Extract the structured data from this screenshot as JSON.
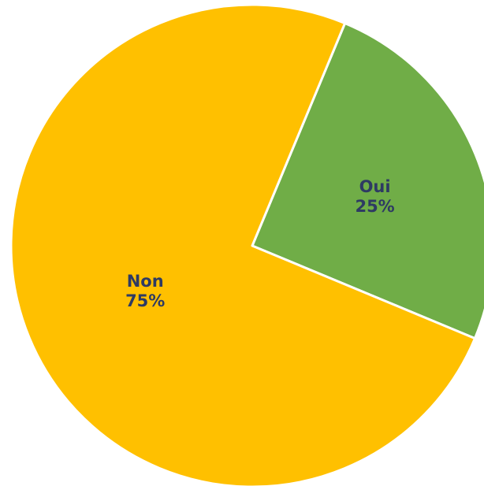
{
  "chart_data": {
    "type": "pie",
    "title": "",
    "categories": [
      "Oui",
      "Non"
    ],
    "values": [
      25,
      75
    ],
    "value_labels": [
      "25%",
      "75%"
    ],
    "colors": [
      "#70AD47",
      "#FFC000"
    ],
    "label_color": "#2E3A63",
    "separator_color": "#FFFFFF",
    "legend": "none"
  }
}
